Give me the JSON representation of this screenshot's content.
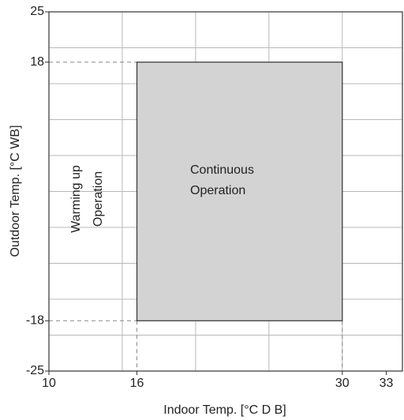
{
  "chart_data": {
    "type": "range",
    "x_label": "Indoor Temp. [°C D B]",
    "y_label": "Outdoor Temp. [°C WB]",
    "xlim": [
      10,
      34.1
    ],
    "ylim": [
      -25,
      25
    ],
    "xticks": [
      10,
      16,
      30,
      33
    ],
    "yticks": [
      -25,
      -18,
      18,
      25
    ],
    "xgrid": [
      15,
      20,
      25,
      30
    ],
    "ygrid": [
      -20,
      -15,
      -10,
      -5,
      0,
      5,
      10,
      15,
      20
    ],
    "grid": true,
    "region": {
      "x": [
        16,
        30
      ],
      "y": [
        -18,
        18
      ],
      "color": "#d3d3d3",
      "label": [
        "Continuous",
        "Operation"
      ]
    },
    "annotation": [
      "Warming up",
      "Operation"
    ]
  }
}
